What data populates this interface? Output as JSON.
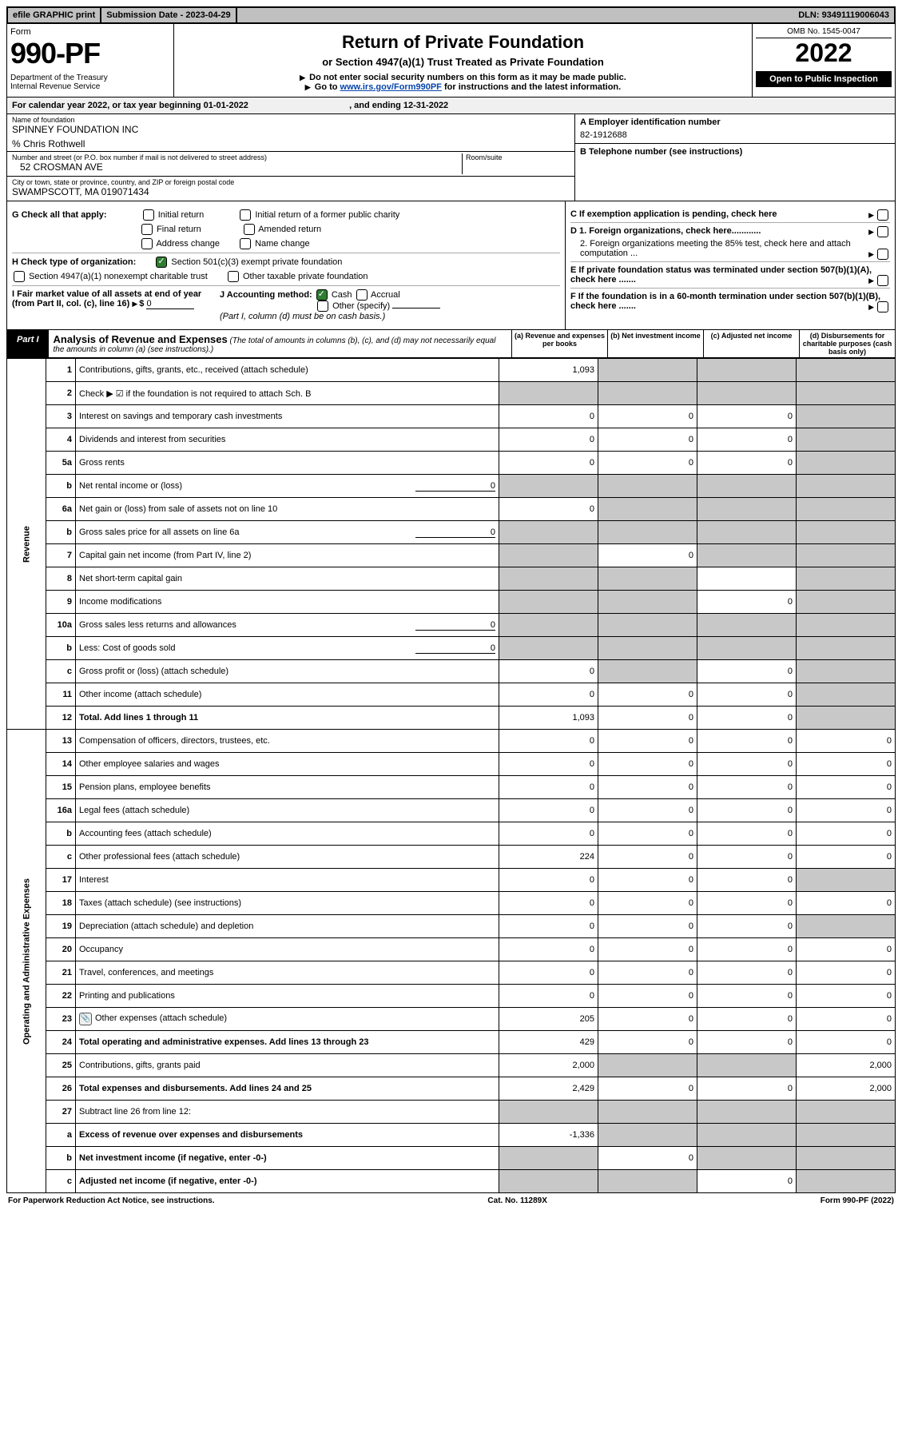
{
  "topbar": {
    "efile": "efile GRAPHIC print",
    "submission_label": "Submission Date - ",
    "submission_date": "2023-04-29",
    "dln_label": "DLN: ",
    "dln": "93491119006043"
  },
  "header": {
    "form_word": "Form",
    "form_num": "990-PF",
    "dept": "Department of the Treasury",
    "irs": "Internal Revenue Service",
    "title": "Return of Private Foundation",
    "subtitle": "or Section 4947(a)(1) Trust Treated as Private Foundation",
    "warn1": "Do not enter social security numbers on this form as it may be made public.",
    "warn2_pre": "Go to ",
    "warn2_link": "www.irs.gov/Form990PF",
    "warn2_post": " for instructions and the latest information.",
    "omb": "OMB No. 1545-0047",
    "year": "2022",
    "inspect": "Open to Public Inspection"
  },
  "calendar": {
    "text_pre": "For calendar year 2022, or tax year beginning ",
    "begin": "01-01-2022",
    "text_mid": ", and ending ",
    "end": "12-31-2022"
  },
  "entity": {
    "name_label": "Name of foundation",
    "name": "SPINNEY FOUNDATION INC",
    "care_of": "% Chris Rothwell",
    "street_label": "Number and street (or P.O. box number if mail is not delivered to street address)",
    "street": "52 CROSMAN AVE",
    "room_label": "Room/suite",
    "city_label": "City or town, state or province, country, and ZIP or foreign postal code",
    "city": "SWAMPSCOTT, MA  019071434",
    "a_label": "A Employer identification number",
    "a_value": "82-1912688",
    "b_label": "B Telephone number (see instructions)",
    "c_label": "C If exemption application is pending, check here",
    "d1_label": "D 1. Foreign organizations, check here............",
    "d2_label": "2. Foreign organizations meeting the 85% test, check here and attach computation ...",
    "e_label": "E  If private foundation status was terminated under section 507(b)(1)(A), check here .......",
    "f_label": "F  If the foundation is in a 60-month termination under section 507(b)(1)(B), check here .......",
    "g_label": "G Check all that apply:",
    "g_opts": [
      "Initial return",
      "Final return",
      "Address change",
      "Initial return of a former public charity",
      "Amended return",
      "Name change"
    ],
    "h_label": "H Check type of organization:",
    "h_opt1": "Section 501(c)(3) exempt private foundation",
    "h_opt2": "Section 4947(a)(1) nonexempt charitable trust",
    "h_opt3": "Other taxable private foundation",
    "i_label": "I Fair market value of all assets at end of year (from Part II, col. (c), line 16)",
    "i_value": "0",
    "j_label": "J Accounting method:",
    "j_cash": "Cash",
    "j_accrual": "Accrual",
    "j_other": "Other (specify)",
    "j_note": "(Part I, column (d) must be on cash basis.)"
  },
  "part1": {
    "label": "Part I",
    "title": "Analysis of Revenue and Expenses",
    "note": "(The total of amounts in columns (b), (c), and (d) may not necessarily equal the amounts in column (a) (see instructions).)",
    "col_a": "(a) Revenue and expenses per books",
    "col_b": "(b) Net investment income",
    "col_c": "(c) Adjusted net income",
    "col_d": "(d) Disbursements for charitable purposes (cash basis only)",
    "revenue_label": "Revenue",
    "expenses_label": "Operating and Administrative Expenses"
  },
  "rows": [
    {
      "n": "1",
      "desc": "Contributions, gifts, grants, etc., received (attach schedule)",
      "a": "1,093",
      "b": "",
      "c": "",
      "d": "",
      "shade": [
        "b",
        "c",
        "d"
      ]
    },
    {
      "n": "2",
      "desc": "Check ▶ ☑ if the foundation is not required to attach Sch. B",
      "shade": [
        "a",
        "b",
        "c",
        "d"
      ]
    },
    {
      "n": "3",
      "desc": "Interest on savings and temporary cash investments",
      "a": "0",
      "b": "0",
      "c": "0",
      "shade": [
        "d"
      ]
    },
    {
      "n": "4",
      "desc": "Dividends and interest from securities",
      "a": "0",
      "b": "0",
      "c": "0",
      "shade": [
        "d"
      ]
    },
    {
      "n": "5a",
      "desc": "Gross rents",
      "a": "0",
      "b": "0",
      "c": "0",
      "shade": [
        "d"
      ]
    },
    {
      "n": "b",
      "desc": "Net rental income or (loss)",
      "inline": "0",
      "shade": [
        "a",
        "b",
        "c",
        "d"
      ]
    },
    {
      "n": "6a",
      "desc": "Net gain or (loss) from sale of assets not on line 10",
      "a": "0",
      "shade": [
        "b",
        "c",
        "d"
      ]
    },
    {
      "n": "b",
      "desc": "Gross sales price for all assets on line 6a",
      "inline": "0",
      "shade": [
        "a",
        "b",
        "c",
        "d"
      ]
    },
    {
      "n": "7",
      "desc": "Capital gain net income (from Part IV, line 2)",
      "b": "0",
      "shade": [
        "a",
        "c",
        "d"
      ]
    },
    {
      "n": "8",
      "desc": "Net short-term capital gain",
      "shade": [
        "a",
        "b",
        "d"
      ]
    },
    {
      "n": "9",
      "desc": "Income modifications",
      "c": "0",
      "shade": [
        "a",
        "b",
        "d"
      ]
    },
    {
      "n": "10a",
      "desc": "Gross sales less returns and allowances",
      "inline": "0",
      "shade": [
        "a",
        "b",
        "c",
        "d"
      ]
    },
    {
      "n": "b",
      "desc": "Less: Cost of goods sold",
      "inline": "0",
      "shade": [
        "a",
        "b",
        "c",
        "d"
      ]
    },
    {
      "n": "c",
      "desc": "Gross profit or (loss) (attach schedule)",
      "a": "0",
      "c": "0",
      "shade": [
        "b",
        "d"
      ]
    },
    {
      "n": "11",
      "desc": "Other income (attach schedule)",
      "a": "0",
      "b": "0",
      "c": "0",
      "shade": [
        "d"
      ]
    },
    {
      "n": "12",
      "desc": "Total. Add lines 1 through 11",
      "bold": true,
      "a": "1,093",
      "b": "0",
      "c": "0",
      "shade": [
        "d"
      ]
    },
    {
      "n": "13",
      "desc": "Compensation of officers, directors, trustees, etc.",
      "a": "0",
      "b": "0",
      "c": "0",
      "d": "0"
    },
    {
      "n": "14",
      "desc": "Other employee salaries and wages",
      "a": "0",
      "b": "0",
      "c": "0",
      "d": "0"
    },
    {
      "n": "15",
      "desc": "Pension plans, employee benefits",
      "a": "0",
      "b": "0",
      "c": "0",
      "d": "0"
    },
    {
      "n": "16a",
      "desc": "Legal fees (attach schedule)",
      "a": "0",
      "b": "0",
      "c": "0",
      "d": "0"
    },
    {
      "n": "b",
      "desc": "Accounting fees (attach schedule)",
      "a": "0",
      "b": "0",
      "c": "0",
      "d": "0"
    },
    {
      "n": "c",
      "desc": "Other professional fees (attach schedule)",
      "a": "224",
      "b": "0",
      "c": "0",
      "d": "0"
    },
    {
      "n": "17",
      "desc": "Interest",
      "a": "0",
      "b": "0",
      "c": "0",
      "shade": [
        "d"
      ]
    },
    {
      "n": "18",
      "desc": "Taxes (attach schedule) (see instructions)",
      "a": "0",
      "b": "0",
      "c": "0",
      "d": "0"
    },
    {
      "n": "19",
      "desc": "Depreciation (attach schedule) and depletion",
      "a": "0",
      "b": "0",
      "c": "0",
      "shade": [
        "d"
      ]
    },
    {
      "n": "20",
      "desc": "Occupancy",
      "a": "0",
      "b": "0",
      "c": "0",
      "d": "0"
    },
    {
      "n": "21",
      "desc": "Travel, conferences, and meetings",
      "a": "0",
      "b": "0",
      "c": "0",
      "d": "0"
    },
    {
      "n": "22",
      "desc": "Printing and publications",
      "a": "0",
      "b": "0",
      "c": "0",
      "d": "0"
    },
    {
      "n": "23",
      "desc": "Other expenses (attach schedule)",
      "icon": true,
      "a": "205",
      "b": "0",
      "c": "0",
      "d": "0"
    },
    {
      "n": "24",
      "desc": "Total operating and administrative expenses. Add lines 13 through 23",
      "bold": true,
      "a": "429",
      "b": "0",
      "c": "0",
      "d": "0"
    },
    {
      "n": "25",
      "desc": "Contributions, gifts, grants paid",
      "a": "2,000",
      "d": "2,000",
      "shade": [
        "b",
        "c"
      ]
    },
    {
      "n": "26",
      "desc": "Total expenses and disbursements. Add lines 24 and 25",
      "bold": true,
      "a": "2,429",
      "b": "0",
      "c": "0",
      "d": "2,000"
    },
    {
      "n": "27",
      "desc": "Subtract line 26 from line 12:",
      "shade": [
        "a",
        "b",
        "c",
        "d"
      ]
    },
    {
      "n": "a",
      "desc": "Excess of revenue over expenses and disbursements",
      "bold": true,
      "a": "-1,336",
      "shade": [
        "b",
        "c",
        "d"
      ]
    },
    {
      "n": "b",
      "desc": "Net investment income (if negative, enter -0-)",
      "bold": true,
      "b": "0",
      "shade": [
        "a",
        "c",
        "d"
      ]
    },
    {
      "n": "c",
      "desc": "Adjusted net income (if negative, enter -0-)",
      "bold": true,
      "c": "0",
      "shade": [
        "a",
        "b",
        "d"
      ]
    }
  ],
  "footer": {
    "left": "For Paperwork Reduction Act Notice, see instructions.",
    "mid": "Cat. No. 11289X",
    "right": "Form 990-PF (2022)"
  }
}
